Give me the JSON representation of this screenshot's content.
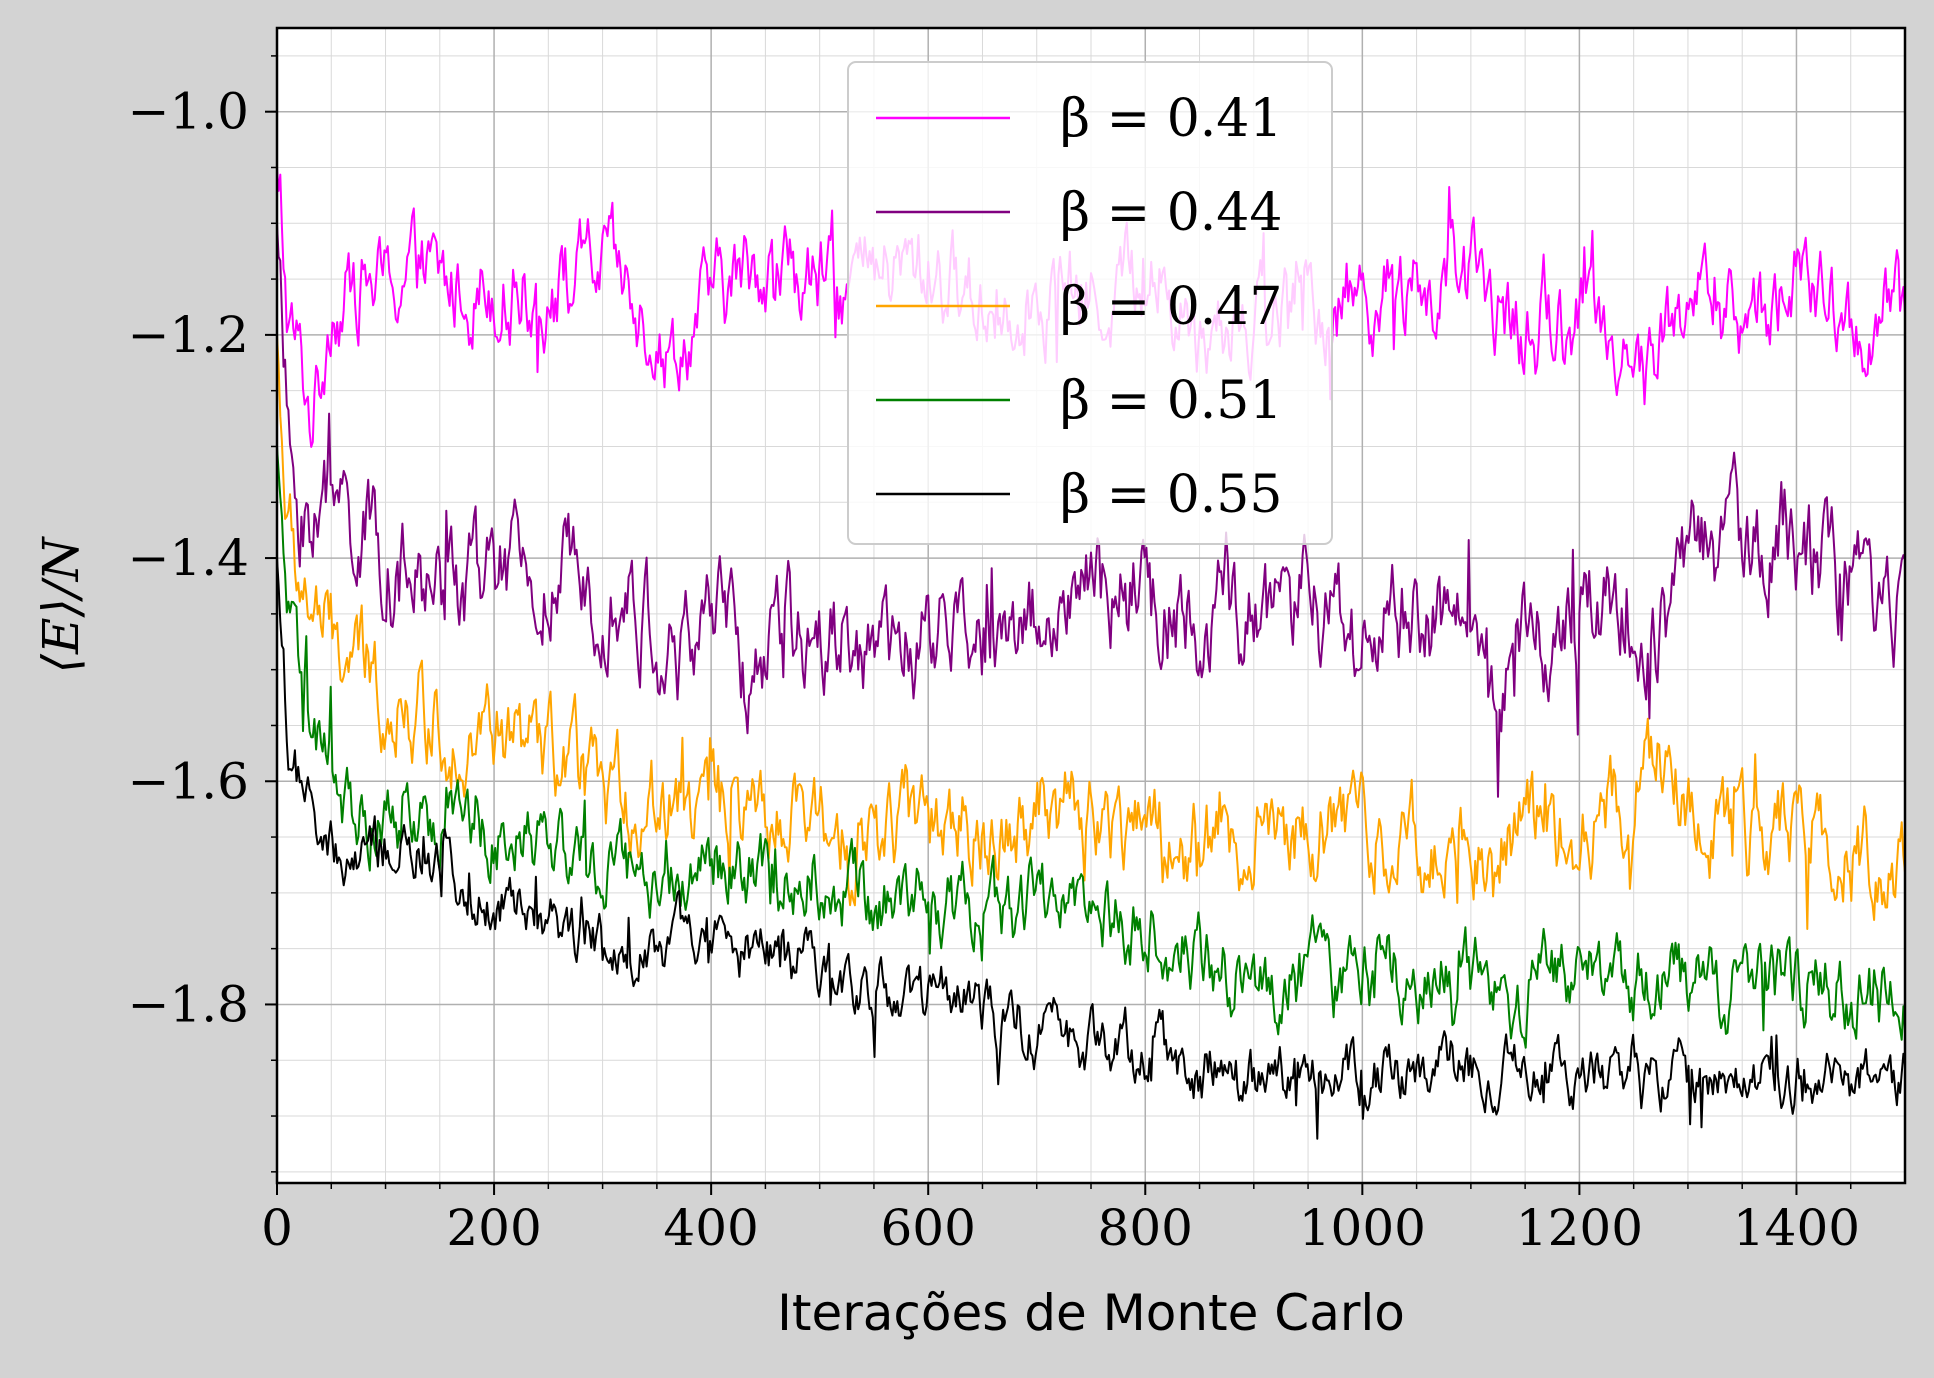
{
  "chart_data": {
    "type": "line",
    "title": "",
    "xlabel": "Iterações de Monte Carlo",
    "ylabel": "⟨E⟩/N",
    "xlim": [
      0,
      1500
    ],
    "ylim": [
      -1.96,
      -0.925
    ],
    "x_ticks": [
      0,
      200,
      400,
      600,
      800,
      1000,
      1200,
      1400
    ],
    "x_tick_labels": [
      "0",
      "200",
      "400",
      "600",
      "800",
      "1000",
      "1200",
      "1400"
    ],
    "y_ticks": [
      -1.0,
      -1.2,
      -1.4,
      -1.6,
      -1.8
    ],
    "y_tick_labels": [
      "−1.0",
      "−1.2",
      "−1.4",
      "−1.6",
      "−1.8"
    ],
    "grid": true,
    "minor_grid": true,
    "legend_position": "top-center",
    "background_color": "#ffffff",
    "figure_color": "#d3d3d3",
    "series": [
      {
        "name": "β = 0.41",
        "color": "#ff00ff",
        "x": [
          0,
          10,
          20,
          30,
          40,
          50,
          60,
          80,
          100,
          120,
          160,
          200,
          250,
          300,
          350,
          360,
          400,
          450,
          500,
          550,
          600,
          650,
          700,
          750,
          800,
          850,
          900,
          950,
          1000,
          1050,
          1100,
          1150,
          1200,
          1250,
          1260,
          1300,
          1350,
          1400,
          1450,
          1500
        ],
        "values": [
          -1.05,
          -1.19,
          -1.22,
          -1.27,
          -1.24,
          -1.16,
          -1.17,
          -1.15,
          -1.16,
          -1.14,
          -1.16,
          -1.15,
          -1.16,
          -1.14,
          -1.19,
          -1.22,
          -1.17,
          -1.13,
          -1.16,
          -1.15,
          -1.14,
          -1.17,
          -1.16,
          -1.17,
          -1.14,
          -1.2,
          -1.18,
          -1.18,
          -1.16,
          -1.17,
          -1.15,
          -1.2,
          -1.18,
          -1.21,
          -1.24,
          -1.16,
          -1.19,
          -1.15,
          -1.2,
          -1.18
        ],
        "noise": 0.03
      },
      {
        "name": "β = 0.44",
        "color": "#800080",
        "x": [
          0,
          10,
          20,
          30,
          50,
          70,
          100,
          130,
          150,
          200,
          250,
          300,
          350,
          370,
          400,
          430,
          450,
          500,
          550,
          570,
          600,
          650,
          700,
          750,
          800,
          850,
          900,
          950,
          1000,
          1050,
          1100,
          1140,
          1150,
          1200,
          1250,
          1260,
          1300,
          1350,
          1400,
          1450,
          1500
        ],
        "values": [
          -1.1,
          -1.3,
          -1.36,
          -1.36,
          -1.35,
          -1.37,
          -1.4,
          -1.43,
          -1.42,
          -1.42,
          -1.43,
          -1.41,
          -1.47,
          -1.5,
          -1.44,
          -1.5,
          -1.49,
          -1.45,
          -1.48,
          -1.5,
          -1.47,
          -1.47,
          -1.45,
          -1.44,
          -1.43,
          -1.45,
          -1.46,
          -1.44,
          -1.47,
          -1.45,
          -1.48,
          -1.52,
          -1.47,
          -1.45,
          -1.42,
          -1.5,
          -1.4,
          -1.38,
          -1.38,
          -1.43,
          -1.45
        ],
        "noise": 0.035
      },
      {
        "name": "β = 0.47",
        "color": "#ffa500",
        "x": [
          0,
          10,
          20,
          40,
          60,
          80,
          100,
          150,
          200,
          250,
          300,
          350,
          400,
          450,
          500,
          550,
          600,
          650,
          700,
          750,
          800,
          850,
          900,
          950,
          1000,
          1050,
          1100,
          1150,
          1200,
          1250,
          1270,
          1300,
          1350,
          1400,
          1450,
          1500
        ],
        "values": [
          -1.2,
          -1.38,
          -1.42,
          -1.46,
          -1.49,
          -1.5,
          -1.52,
          -1.55,
          -1.56,
          -1.58,
          -1.61,
          -1.62,
          -1.62,
          -1.65,
          -1.64,
          -1.65,
          -1.63,
          -1.65,
          -1.62,
          -1.63,
          -1.64,
          -1.66,
          -1.65,
          -1.64,
          -1.64,
          -1.65,
          -1.66,
          -1.64,
          -1.64,
          -1.61,
          -1.57,
          -1.63,
          -1.66,
          -1.63,
          -1.67,
          -1.67
        ],
        "noise": 0.03
      },
      {
        "name": "β = 0.51",
        "color": "#008000",
        "x": [
          0,
          10,
          20,
          40,
          60,
          80,
          100,
          150,
          200,
          250,
          300,
          350,
          400,
          450,
          500,
          550,
          600,
          650,
          700,
          750,
          800,
          850,
          900,
          950,
          1000,
          1050,
          1100,
          1150,
          1200,
          1250,
          1300,
          1350,
          1400,
          1450,
          1500
        ],
        "values": [
          -1.3,
          -1.45,
          -1.52,
          -1.58,
          -1.61,
          -1.64,
          -1.63,
          -1.63,
          -1.64,
          -1.65,
          -1.68,
          -1.69,
          -1.67,
          -1.69,
          -1.68,
          -1.71,
          -1.7,
          -1.72,
          -1.71,
          -1.72,
          -1.74,
          -1.75,
          -1.78,
          -1.77,
          -1.78,
          -1.77,
          -1.78,
          -1.79,
          -1.77,
          -1.78,
          -1.78,
          -1.79,
          -1.78,
          -1.79,
          -1.81
        ],
        "noise": 0.025
      },
      {
        "name": "β = 0.55",
        "color": "#000000",
        "x": [
          0,
          10,
          20,
          30,
          40,
          60,
          80,
          100,
          150,
          200,
          250,
          300,
          350,
          400,
          450,
          500,
          550,
          600,
          650,
          700,
          750,
          800,
          850,
          900,
          950,
          1000,
          1050,
          1100,
          1150,
          1200,
          1250,
          1300,
          1350,
          1400,
          1450,
          1500
        ],
        "values": [
          -1.4,
          -1.56,
          -1.6,
          -1.63,
          -1.66,
          -1.68,
          -1.67,
          -1.66,
          -1.68,
          -1.7,
          -1.72,
          -1.74,
          -1.74,
          -1.75,
          -1.76,
          -1.76,
          -1.78,
          -1.79,
          -1.81,
          -1.82,
          -1.83,
          -1.84,
          -1.86,
          -1.87,
          -1.86,
          -1.87,
          -1.86,
          -1.86,
          -1.87,
          -1.86,
          -1.86,
          -1.87,
          -1.86,
          -1.86,
          -1.87,
          -1.87
        ],
        "noise": 0.02
      }
    ]
  }
}
